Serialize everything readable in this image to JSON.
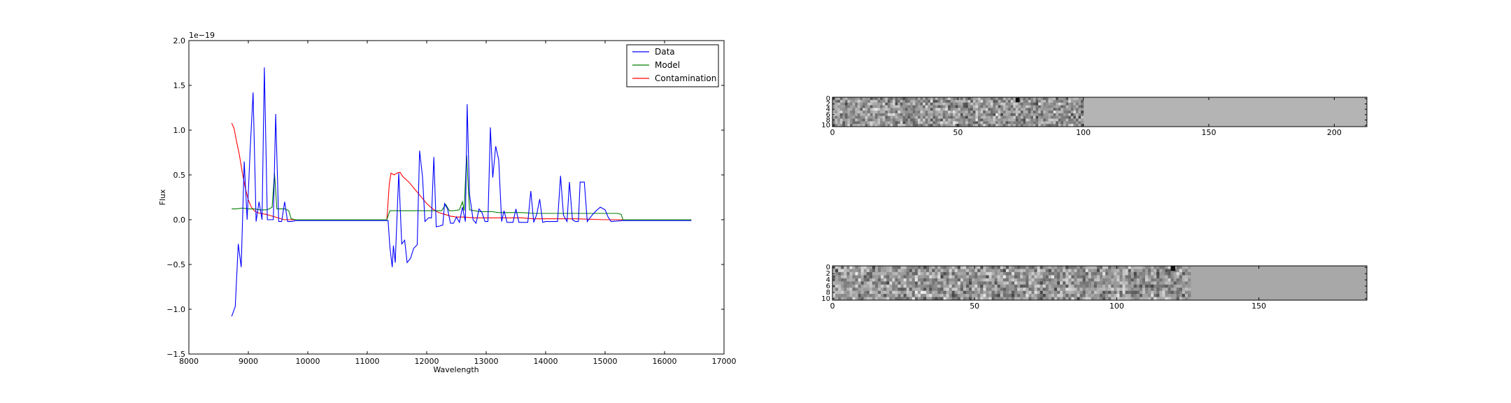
{
  "chart_data": [
    {
      "type": "line",
      "xlabel": "Wavelength",
      "ylabel": "Flux",
      "xlim": [
        8000,
        17000
      ],
      "ylim": [
        -1.5,
        2.0
      ],
      "x_ticks": [
        8000,
        9000,
        10000,
        11000,
        12000,
        13000,
        14000,
        15000,
        16000,
        17000
      ],
      "y_ticks": [
        -1.5,
        -1.0,
        -0.5,
        0.0,
        0.5,
        1.0,
        1.5,
        2.0
      ],
      "y_tick_labels": [
        "−1.5",
        "−1.0",
        "−0.5",
        "0.0",
        "0.5",
        "1.0",
        "1.5",
        "2.0"
      ],
      "offset_text": "1e−19",
      "grid": false,
      "legend_position": "top-right",
      "series": [
        {
          "name": "Data",
          "color": "#0000ff",
          "points": [
            [
              8720,
              -1.08
            ],
            [
              8780,
              -0.97
            ],
            [
              8830,
              -0.27
            ],
            [
              8880,
              -0.53
            ],
            [
              8930,
              0.65
            ],
            [
              8980,
              0.0
            ],
            [
              9030,
              0.78
            ],
            [
              9080,
              1.42
            ],
            [
              9130,
              -0.02
            ],
            [
              9180,
              0.2
            ],
            [
              9230,
              0.0
            ],
            [
              9270,
              1.7
            ],
            [
              9320,
              0.0
            ],
            [
              9370,
              0.0
            ],
            [
              9420,
              0.0
            ],
            [
              9460,
              1.18
            ],
            [
              9510,
              -0.02
            ],
            [
              9560,
              -0.02
            ],
            [
              9610,
              0.2
            ],
            [
              9660,
              -0.02
            ],
            [
              9720,
              -0.02
            ],
            [
              9800,
              -0.01
            ],
            [
              10500,
              -0.01
            ],
            [
              11350,
              -0.01
            ],
            [
              11380,
              -0.3
            ],
            [
              11420,
              -0.53
            ],
            [
              11440,
              -0.29
            ],
            [
              11470,
              -0.48
            ],
            [
              11530,
              0.52
            ],
            [
              11580,
              -0.27
            ],
            [
              11630,
              -0.23
            ],
            [
              11670,
              -0.48
            ],
            [
              11730,
              -0.43
            ],
            [
              11780,
              -0.32
            ],
            [
              11840,
              -0.28
            ],
            [
              11880,
              0.77
            ],
            [
              11930,
              0.48
            ],
            [
              11970,
              -0.02
            ],
            [
              12030,
              0.02
            ],
            [
              12080,
              0.02
            ],
            [
              12120,
              0.7
            ],
            [
              12160,
              -0.08
            ],
            [
              12220,
              -0.07
            ],
            [
              12270,
              -0.06
            ],
            [
              12300,
              0.18
            ],
            [
              12350,
              0.12
            ],
            [
              12400,
              -0.04
            ],
            [
              12450,
              -0.04
            ],
            [
              12500,
              0.03
            ],
            [
              12550,
              -0.03
            ],
            [
              12600,
              0.14
            ],
            [
              12650,
              -0.02
            ],
            [
              12680,
              1.29
            ],
            [
              12720,
              0.28
            ],
            [
              12780,
              0.0
            ],
            [
              12830,
              -0.04
            ],
            [
              12880,
              0.12
            ],
            [
              12930,
              0.08
            ],
            [
              12980,
              -0.02
            ],
            [
              13030,
              -0.02
            ],
            [
              13070,
              1.03
            ],
            [
              13110,
              0.47
            ],
            [
              13160,
              0.82
            ],
            [
              13210,
              0.67
            ],
            [
              13260,
              -0.02
            ],
            [
              13300,
              0.1
            ],
            [
              13350,
              -0.03
            ],
            [
              13400,
              -0.03
            ],
            [
              13450,
              -0.03
            ],
            [
              13500,
              0.12
            ],
            [
              13550,
              -0.03
            ],
            [
              13600,
              -0.03
            ],
            [
              13650,
              -0.03
            ],
            [
              13700,
              -0.03
            ],
            [
              13750,
              0.32
            ],
            [
              13800,
              -0.03
            ],
            [
              13850,
              0.06
            ],
            [
              13900,
              0.23
            ],
            [
              13950,
              -0.03
            ],
            [
              14000,
              -0.02
            ],
            [
              14100,
              -0.02
            ],
            [
              14200,
              -0.02
            ],
            [
              14250,
              0.49
            ],
            [
              14300,
              0.05
            ],
            [
              14360,
              -0.02
            ],
            [
              14400,
              0.42
            ],
            [
              14450,
              0.0
            ],
            [
              14500,
              -0.02
            ],
            [
              14550,
              -0.02
            ],
            [
              14580,
              0.42
            ],
            [
              14650,
              0.42
            ],
            [
              14700,
              -0.02
            ],
            [
              14780,
              0.05
            ],
            [
              14850,
              0.1
            ],
            [
              14920,
              0.14
            ],
            [
              15000,
              0.11
            ],
            [
              15050,
              0.03
            ],
            [
              15100,
              -0.02
            ],
            [
              15300,
              -0.01
            ],
            [
              16450,
              -0.01
            ]
          ]
        },
        {
          "name": "Model",
          "color": "#008000",
          "points": [
            [
              8720,
              0.12
            ],
            [
              8800,
              0.12
            ],
            [
              8900,
              0.13
            ],
            [
              9000,
              0.12
            ],
            [
              9100,
              0.12
            ],
            [
              9200,
              0.11
            ],
            [
              9300,
              0.11
            ],
            [
              9350,
              0.12
            ],
            [
              9400,
              0.14
            ],
            [
              9440,
              0.52
            ],
            [
              9480,
              0.12
            ],
            [
              9550,
              0.12
            ],
            [
              9620,
              0.12
            ],
            [
              9680,
              0.1
            ],
            [
              9720,
              0.01
            ],
            [
              9800,
              0.0
            ],
            [
              10500,
              0.0
            ],
            [
              11330,
              0.0
            ],
            [
              11380,
              0.1
            ],
            [
              11500,
              0.1
            ],
            [
              11700,
              0.1
            ],
            [
              11900,
              0.1
            ],
            [
              12100,
              0.1
            ],
            [
              12250,
              0.1
            ],
            [
              12320,
              0.17
            ],
            [
              12380,
              0.1
            ],
            [
              12450,
              0.1
            ],
            [
              12550,
              0.11
            ],
            [
              12600,
              0.2
            ],
            [
              12630,
              0.1
            ],
            [
              12670,
              0.72
            ],
            [
              12720,
              0.11
            ],
            [
              12800,
              0.1
            ],
            [
              12900,
              0.09
            ],
            [
              13000,
              0.09
            ],
            [
              13100,
              0.09
            ],
            [
              13200,
              0.08
            ],
            [
              13400,
              0.08
            ],
            [
              13600,
              0.08
            ],
            [
              13800,
              0.07
            ],
            [
              14000,
              0.07
            ],
            [
              14200,
              0.07
            ],
            [
              14400,
              0.07
            ],
            [
              14600,
              0.07
            ],
            [
              14800,
              0.07
            ],
            [
              15000,
              0.07
            ],
            [
              15200,
              0.07
            ],
            [
              15270,
              0.06
            ],
            [
              15300,
              0.0
            ],
            [
              16450,
              0.0
            ]
          ]
        },
        {
          "name": "Contamination",
          "color": "#ff0000",
          "points": [
            [
              8720,
              1.08
            ],
            [
              8760,
              1.02
            ],
            [
              8800,
              0.88
            ],
            [
              8850,
              0.72
            ],
            [
              8900,
              0.52
            ],
            [
              8950,
              0.35
            ],
            [
              9000,
              0.22
            ],
            [
              9050,
              0.14
            ],
            [
              9100,
              0.1
            ],
            [
              9150,
              0.08
            ],
            [
              9200,
              0.07
            ],
            [
              9300,
              0.06
            ],
            [
              9400,
              0.04
            ],
            [
              9500,
              0.02
            ],
            [
              9600,
              0.0
            ],
            [
              10500,
              0.0
            ],
            [
              11330,
              0.0
            ],
            [
              11370,
              0.4
            ],
            [
              11400,
              0.52
            ],
            [
              11450,
              0.5
            ],
            [
              11500,
              0.52
            ],
            [
              11550,
              0.53
            ],
            [
              11600,
              0.48
            ],
            [
              11700,
              0.42
            ],
            [
              11800,
              0.34
            ],
            [
              11900,
              0.26
            ],
            [
              12000,
              0.18
            ],
            [
              12100,
              0.12
            ],
            [
              12200,
              0.08
            ],
            [
              12300,
              0.06
            ],
            [
              12400,
              0.04
            ],
            [
              12500,
              0.03
            ],
            [
              12600,
              0.03
            ],
            [
              12800,
              0.02
            ],
            [
              13000,
              0.02
            ],
            [
              13200,
              0.02
            ],
            [
              13400,
              0.02
            ],
            [
              13600,
              0.02
            ],
            [
              13800,
              0.01
            ],
            [
              14000,
              0.01
            ],
            [
              14500,
              0.01
            ],
            [
              15000,
              0.0
            ],
            [
              16450,
              0.0
            ]
          ]
        }
      ]
    },
    {
      "type": "heatmap",
      "colormap": "gray",
      "xlim": [
        0,
        213
      ],
      "ylim": [
        11,
        0
      ],
      "x_ticks": [
        0,
        50,
        100,
        150,
        200
      ],
      "y_tick_labels": [
        "0",
        "2",
        "4",
        "6",
        "8",
        "10"
      ],
      "data_extent_x": 100,
      "fill_value_color": "#b4b4b4"
    },
    {
      "type": "heatmap",
      "colormap": "gray",
      "xlim": [
        0,
        188
      ],
      "ylim": [
        11,
        0
      ],
      "x_ticks": [
        0,
        50,
        100,
        150
      ],
      "y_tick_labels": [
        "0",
        "2",
        "4",
        "6",
        "8",
        "10"
      ],
      "data_extent_x": 126,
      "fill_value_color": "#a8a8a8"
    }
  ]
}
